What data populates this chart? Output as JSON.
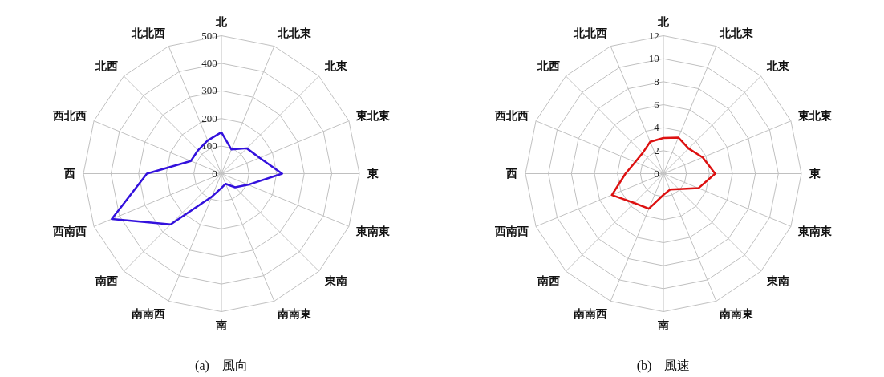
{
  "chart_data": [
    {
      "type": "radar",
      "categories": [
        "北",
        "北北東",
        "北東",
        "東北東",
        "東",
        "東南東",
        "東南",
        "南南東",
        "南",
        "南南西",
        "南西",
        "西南西",
        "西",
        "西北西",
        "北西",
        "北北西"
      ],
      "series": [
        {
          "color": "#3311dd",
          "values": [
            150,
            95,
            130,
            150,
            220,
            105,
            70,
            40,
            52,
            90,
            260,
            430,
            270,
            120,
            120,
            130
          ]
        }
      ],
      "ylim": [
        0,
        500
      ],
      "yticks": [
        0,
        100,
        200,
        300,
        400,
        500
      ],
      "grid": true,
      "marker": "none",
      "annotations": [
        "(a)　風向"
      ]
    },
    {
      "type": "radar",
      "categories": [
        "北",
        "北北東",
        "北東",
        "東北東",
        "東",
        "東南東",
        "東南",
        "南南東",
        "南",
        "南南西",
        "南西",
        "西南西",
        "西",
        "西北西",
        "北西",
        "北北西"
      ],
      "series": [
        {
          "color": "#dd1111",
          "values": [
            3.1,
            3.4,
            3.1,
            3.7,
            4.5,
            3.3,
            1.9,
            1.5,
            1.85,
            3.3,
            3.6,
            4.85,
            3.3,
            2.65,
            2.55,
            3.0
          ]
        }
      ],
      "ylim": [
        0,
        12
      ],
      "yticks": [
        0,
        2,
        4,
        6,
        8,
        10,
        12
      ],
      "grid": true,
      "marker": "none",
      "annotations": [
        "(b)　風速"
      ]
    }
  ]
}
